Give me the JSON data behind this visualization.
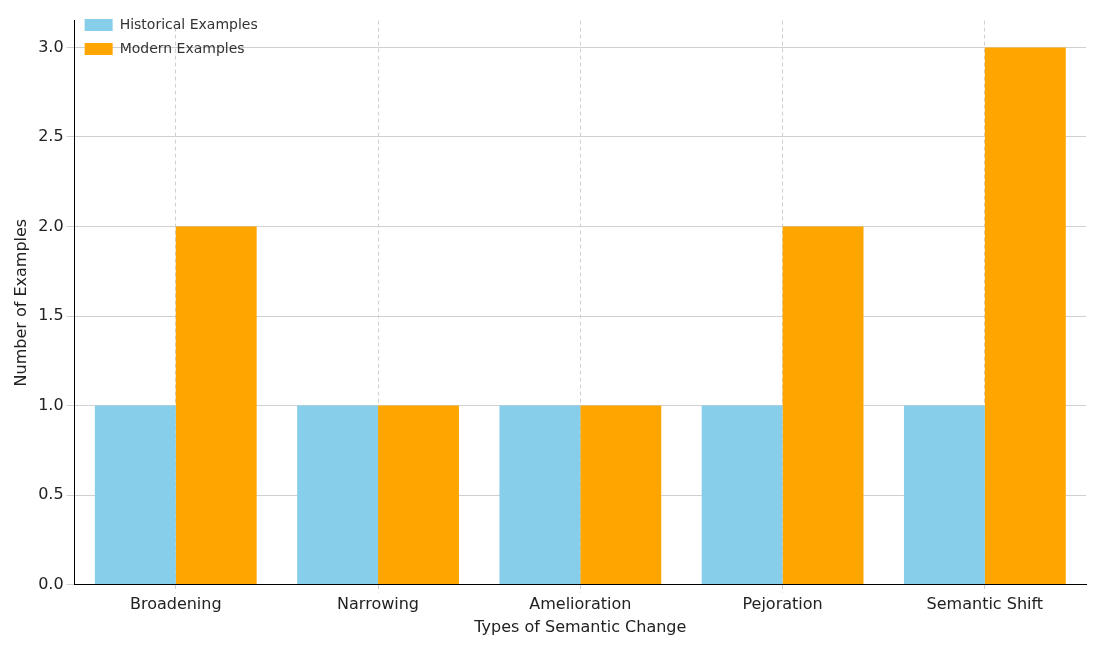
{
  "chart_data": {
    "type": "bar",
    "xlabel": "Types of Semantic Change",
    "ylabel": "Number of Examples",
    "categories": [
      "Broadening",
      "Narrowing",
      "Amelioration",
      "Pejoration",
      "Semantic Shift"
    ],
    "series": [
      {
        "name": "Historical Examples",
        "color": "#87ceeb",
        "values": [
          1,
          1,
          1,
          1,
          1
        ]
      },
      {
        "name": "Modern Examples",
        "color": "#ffa500",
        "values": [
          2,
          1,
          1,
          2,
          3
        ]
      }
    ],
    "ylim": [
      0,
      3.15
    ],
    "yticks": [
      {
        "value": 0,
        "label": "0.0"
      },
      0.5,
      {
        "value": 1,
        "label": "1.0"
      },
      1.5,
      {
        "value": 2,
        "label": "2.0"
      },
      2.5,
      {
        "value": 3,
        "label": "3.0"
      }
    ],
    "grid": true,
    "legend": "top left"
  }
}
